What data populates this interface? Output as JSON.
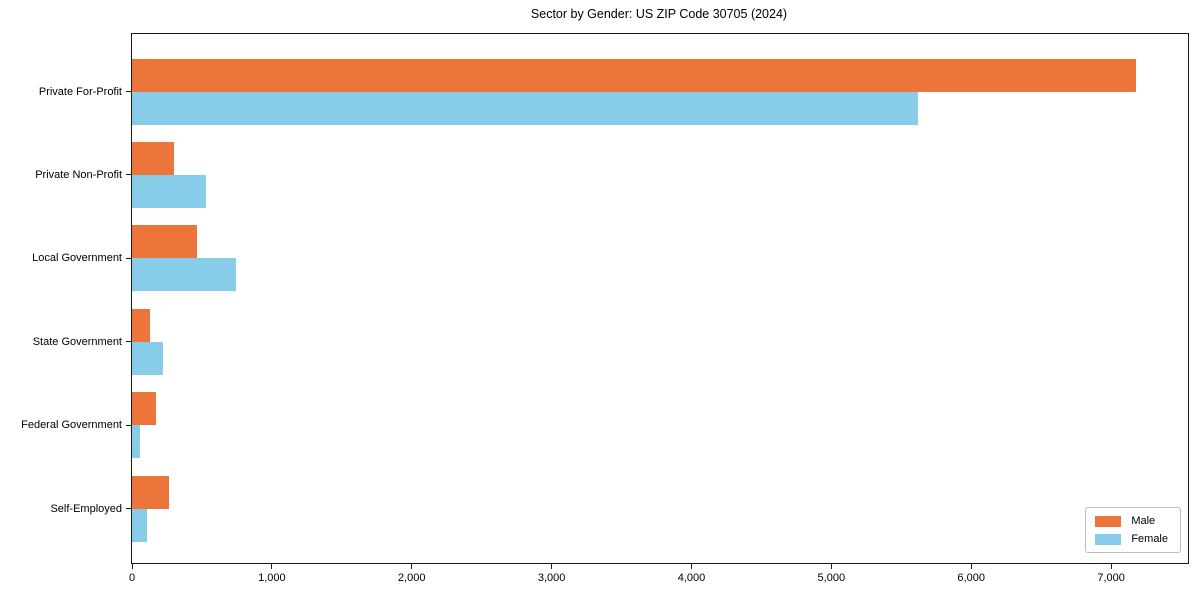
{
  "title": "Sector by Gender: US ZIP Code 30705 (2024)",
  "chart_data": {
    "type": "bar",
    "orientation": "horizontal",
    "title": "Sector by Gender: US ZIP Code 30705 (2024)",
    "categories": [
      "Private For-Profit",
      "Private Non-Profit",
      "Local Government",
      "State Government",
      "Federal Government",
      "Self-Employed"
    ],
    "series": [
      {
        "name": "Male",
        "color": "#ec753b",
        "values": [
          7180,
          300,
          465,
          130,
          170,
          265
        ]
      },
      {
        "name": "Female",
        "color": "#87cdea",
        "values": [
          5620,
          530,
          745,
          220,
          60,
          110
        ]
      }
    ],
    "xlabel": "",
    "ylabel": "",
    "xlim": [
      0,
      7550
    ],
    "xticks": [
      0,
      1000,
      2000,
      3000,
      4000,
      5000,
      6000,
      7000
    ],
    "xtick_labels": [
      "0",
      "1,000",
      "2,000",
      "3,000",
      "4,000",
      "5,000",
      "6,000",
      "7,000"
    ],
    "grid": false,
    "legend_position": "lower right",
    "axis_color": "#1a1a1a",
    "background_color": "#ffffff"
  }
}
